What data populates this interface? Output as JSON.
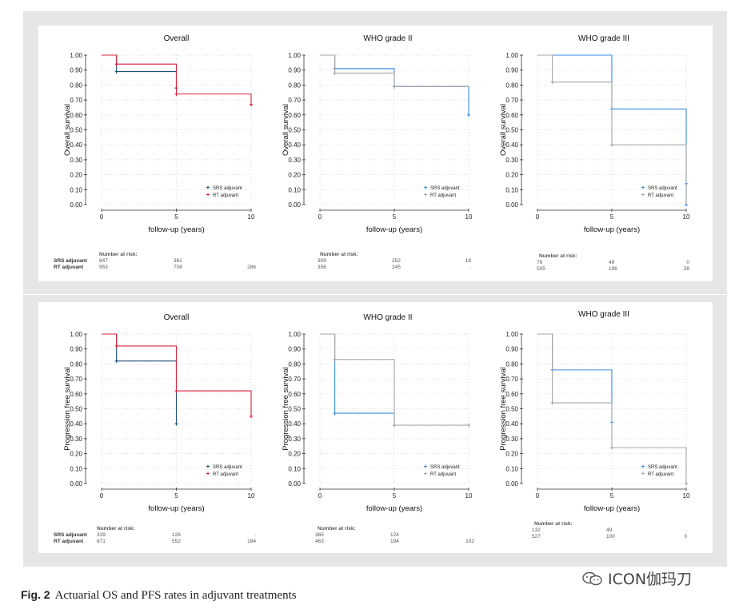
{
  "figure": {
    "caption_label": "Fig. 2",
    "caption_text": "Actuarial OS and PFS rates in adjuvant treatments",
    "watermark": "ICON伽玛刀",
    "colors": {
      "page_bg": "#ffffff",
      "panel_border": "#e6e6e6",
      "srs": "#1f4e79",
      "rt": "#d6243e",
      "srs_who": "#3b8de0",
      "rt_who": "#a6a6a6",
      "grid": "#c8c8c8"
    }
  },
  "chart_data": [
    {
      "type": "line",
      "step": true,
      "title": "Overall",
      "ylabel": "Overall survival",
      "xlabel": "follow-up (years)",
      "xlim": [
        0,
        10
      ],
      "ylim": [
        0,
        1
      ],
      "xticks": [
        "0",
        "5",
        "10"
      ],
      "yticks": [
        "0.00",
        "0.10",
        "0.20",
        "0.30",
        "0.40",
        "0.50",
        "0.60",
        "0.70",
        "0.80",
        "0.90",
        "1.00"
      ],
      "legend_position": "bottom-right",
      "grid": true,
      "series": [
        {
          "name": "SRS adjuvant",
          "color": "#1f4e79",
          "x": [
            0,
            1,
            5,
            5
          ],
          "y": [
            1.0,
            0.89,
            0.89,
            0.78
          ],
          "censor_x": [
            1,
            5
          ],
          "censor_y": [
            0.89,
            0.78
          ]
        },
        {
          "name": "RT adjuvant",
          "color": "#d6243e",
          "x": [
            0,
            1,
            5,
            10,
            10
          ],
          "y": [
            1.0,
            0.94,
            0.74,
            0.74,
            0.67
          ],
          "censor_x": [
            1,
            5,
            10
          ],
          "censor_y": [
            0.94,
            0.74,
            0.67
          ]
        }
      ],
      "risk_table": {
        "header": "Number at risk:",
        "rows": [
          {
            "label": "SRS adjuvant",
            "values": [
              "647",
              "361",
              ""
            ]
          },
          {
            "label": "RT adjuvant",
            "values": [
              "953",
              "708",
              "286"
            ]
          }
        ]
      }
    },
    {
      "type": "line",
      "step": true,
      "title": "WHO grade II",
      "ylabel": "Overall survival",
      "xlabel": "follow-up (years)",
      "xlim": [
        0,
        10
      ],
      "ylim": [
        0,
        1
      ],
      "xticks": [
        "0",
        "5",
        "10"
      ],
      "yticks": [
        "0.00",
        "0.10",
        "0.20",
        "0.30",
        "0.40",
        "0.50",
        "0.60",
        "0.70",
        "0.80",
        "0.90",
        "1.00"
      ],
      "legend_position": "bottom-right",
      "grid": true,
      "series": [
        {
          "name": "SRS adjuvant",
          "color": "#3b8de0",
          "x": [
            0,
            1,
            5,
            10,
            10
          ],
          "y": [
            1.0,
            0.91,
            0.79,
            0.79,
            0.6
          ],
          "censor_x": [
            1,
            5,
            10
          ],
          "censor_y": [
            0.91,
            0.79,
            0.6
          ]
        },
        {
          "name": "RT adjuvant",
          "color": "#a6a6a6",
          "x": [
            0,
            1,
            5,
            10
          ],
          "y": [
            1.0,
            0.88,
            0.79,
            0.79
          ],
          "censor_x": [
            1,
            5
          ],
          "censor_y": [
            0.88,
            0.79
          ]
        }
      ],
      "risk_table": {
        "header": "Number at risk:",
        "rows": [
          {
            "label": "",
            "values": [
              "309",
              "252",
              "18"
            ]
          },
          {
            "label": "",
            "values": [
              "356",
              "245",
              "."
            ]
          }
        ]
      }
    },
    {
      "type": "line",
      "step": true,
      "title": "WHO grade III",
      "ylabel": "Overall survival",
      "xlabel": "follow-up (years)",
      "xlim": [
        0,
        10
      ],
      "ylim": [
        0,
        1
      ],
      "xticks": [
        "0",
        "5",
        "10"
      ],
      "yticks": [
        "0.00",
        "0.10",
        "0.20",
        "0.30",
        "0.40",
        "0.50",
        "0.60",
        "0.70",
        "0.80",
        "0.90",
        "1.00"
      ],
      "legend_position": "bottom-right",
      "grid": true,
      "series": [
        {
          "name": "SRS adjuvant",
          "color": "#3b8de0",
          "x": [
            0,
            5,
            10,
            10
          ],
          "y": [
            1.0,
            0.64,
            0.64,
            0.0
          ],
          "censor_x": [
            5,
            10,
            10
          ],
          "censor_y": [
            0.64,
            0.14,
            0.0
          ]
        },
        {
          "name": "RT adjuvant",
          "color": "#a6a6a6",
          "x": [
            0,
            1,
            5,
            10,
            10
          ],
          "y": [
            1.0,
            0.82,
            0.4,
            0.4,
            0.0
          ],
          "censor_x": [
            1,
            5
          ],
          "censor_y": [
            0.82,
            0.4
          ]
        }
      ],
      "risk_table": {
        "header": "Number at risk:",
        "rows": [
          {
            "label": "",
            "values": [
              "76",
              "49",
              "0"
            ]
          },
          {
            "label": "",
            "values": [
              "505",
              "196",
              "28"
            ]
          }
        ]
      }
    },
    {
      "type": "line",
      "step": true,
      "title": "Overall",
      "ylabel": "Progression free survival",
      "xlabel": "follow-up (years)",
      "xlim": [
        0,
        10
      ],
      "ylim": [
        0,
        1
      ],
      "xticks": [
        "0",
        "5",
        "10"
      ],
      "yticks": [
        "0.00",
        "0.10",
        "0.20",
        "0.30",
        "0.40",
        "0.50",
        "0.60",
        "0.70",
        "0.80",
        "0.90",
        "1.00"
      ],
      "legend_position": "bottom-right",
      "grid": true,
      "series": [
        {
          "name": "SRS adjuvant",
          "color": "#1f4e79",
          "x": [
            0,
            1,
            5,
            5
          ],
          "y": [
            1.0,
            0.82,
            0.82,
            0.4
          ],
          "censor_x": [
            1,
            5
          ],
          "censor_y": [
            0.82,
            0.4
          ]
        },
        {
          "name": "RT adjuvant",
          "color": "#d6243e",
          "x": [
            0,
            1,
            5,
            10,
            10
          ],
          "y": [
            1.0,
            0.92,
            0.62,
            0.62,
            0.45
          ],
          "censor_x": [
            1,
            5,
            10
          ],
          "censor_y": [
            0.92,
            0.62,
            0.45
          ]
        }
      ],
      "risk_table": {
        "header": "Number at risk:",
        "rows": [
          {
            "label": "SRS adjuvant",
            "values": [
              "339",
              "126",
              "."
            ]
          },
          {
            "label": "RT adjuvant",
            "values": [
              "871",
              "552",
              "184"
            ]
          }
        ]
      }
    },
    {
      "type": "line",
      "step": true,
      "title": "WHO grade II",
      "ylabel": "Progression free survival",
      "xlabel": "follow-up (years)",
      "xlim": [
        0,
        10
      ],
      "ylim": [
        0,
        1
      ],
      "xticks": [
        "0",
        "5",
        "10"
      ],
      "yticks": [
        "0.00",
        "0.10",
        "0.20",
        "0.30",
        "0.40",
        "0.50",
        "0.60",
        "0.70",
        "0.80",
        "0.90",
        "1.00"
      ],
      "legend_position": "bottom-right",
      "grid": true,
      "series": [
        {
          "name": "SRS adjuvant",
          "color": "#3b8de0",
          "x": [
            0,
            1,
            5,
            5
          ],
          "y": [
            1.0,
            0.47,
            0.47,
            0.39
          ],
          "censor_x": [
            1,
            5
          ],
          "censor_y": [
            0.47,
            0.39
          ]
        },
        {
          "name": "RT adjuvant",
          "color": "#a6a6a6",
          "x": [
            0,
            1,
            5,
            10
          ],
          "y": [
            1.0,
            0.83,
            0.39,
            0.39
          ],
          "censor_x": [
            1,
            5,
            10
          ],
          "censor_y": [
            0.83,
            0.39,
            0.39
          ]
        }
      ],
      "risk_table": {
        "header": "Number at risk:",
        "rows": [
          {
            "label": "",
            "values": [
              "365",
              "124",
              "."
            ]
          },
          {
            "label": "",
            "values": [
              "463",
              "194",
              "102"
            ]
          }
        ]
      }
    },
    {
      "type": "line",
      "step": true,
      "title": "WHO grade III",
      "ylabel": "Progression free survival",
      "xlabel": "follow-up (years)",
      "xlim": [
        0,
        10
      ],
      "ylim": [
        0,
        1
      ],
      "xticks": [
        "0",
        "5",
        "10"
      ],
      "yticks": [
        "0.00",
        "0.10",
        "0.20",
        "0.30",
        "0.40",
        "0.50",
        "0.60",
        "0.70",
        "0.80",
        "0.90",
        "1.00"
      ],
      "legend_position": "bottom-right",
      "grid": true,
      "series": [
        {
          "name": "SRS adjuvant",
          "color": "#3b8de0",
          "x": [
            0,
            1,
            5,
            5
          ],
          "y": [
            1.0,
            0.76,
            0.76,
            0.41
          ],
          "censor_x": [
            1,
            5
          ],
          "censor_y": [
            0.76,
            0.41
          ]
        },
        {
          "name": "RT adjuvant",
          "color": "#a6a6a6",
          "x": [
            0,
            1,
            5,
            10,
            10
          ],
          "y": [
            1.0,
            0.54,
            0.24,
            0.24,
            0.0
          ],
          "censor_x": [
            1,
            5,
            10
          ],
          "censor_y": [
            0.54,
            0.24,
            0.0
          ]
        }
      ],
      "risk_table": {
        "header": "Number at risk:",
        "rows": [
          {
            "label": "",
            "values": [
              "132",
              "49",
              "."
            ]
          },
          {
            "label": "",
            "values": [
              "527",
              "100",
              "0"
            ]
          }
        ]
      }
    }
  ]
}
